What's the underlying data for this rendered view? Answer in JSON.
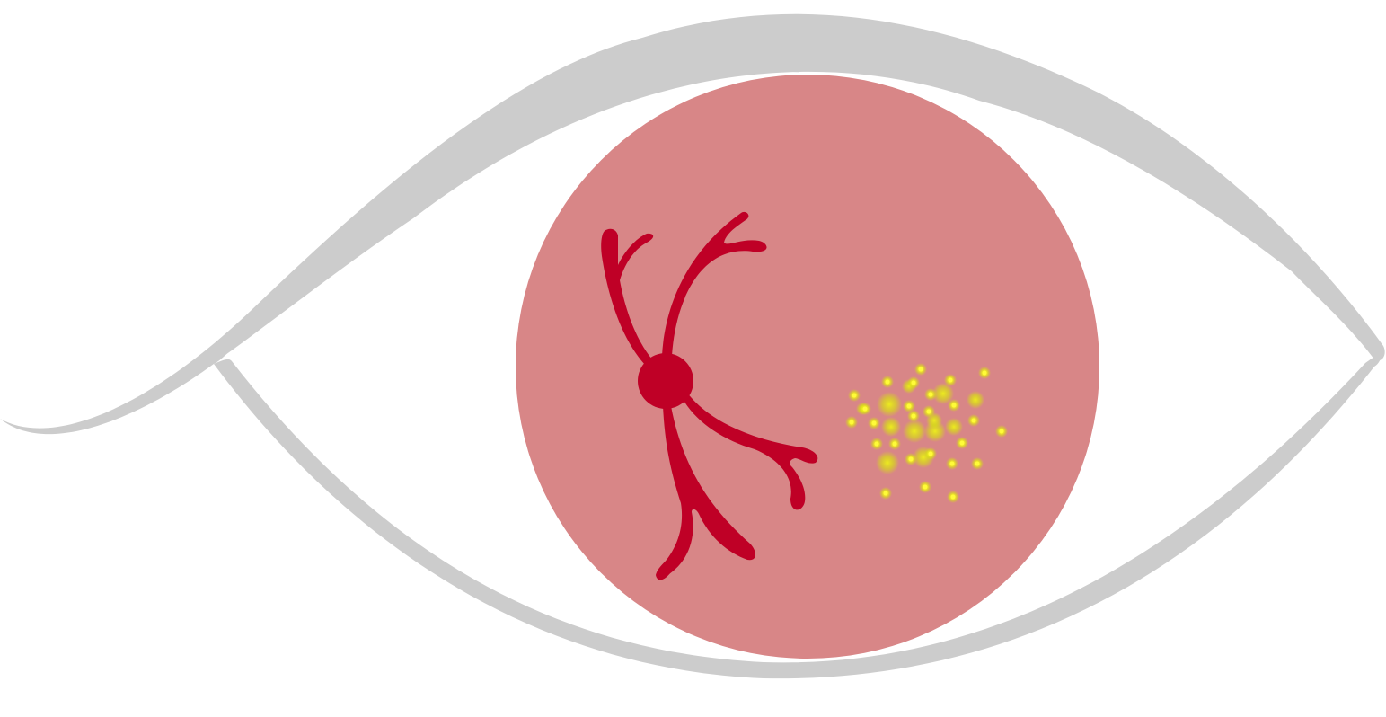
{
  "colors": {
    "background": "#ffffff",
    "eye_outline": "#cccccc",
    "iris": "#d88687",
    "vessel": "#bf0026",
    "spot_core": "#fffb3a",
    "spot_glow": "#d7e60a"
  },
  "icons": {
    "eye": "eye-outline-icon",
    "iris": "inflamed-iris",
    "vessel": "branching-blood-vessel-icon",
    "spots": "yellow-spot-cluster"
  },
  "spot_count": 38
}
